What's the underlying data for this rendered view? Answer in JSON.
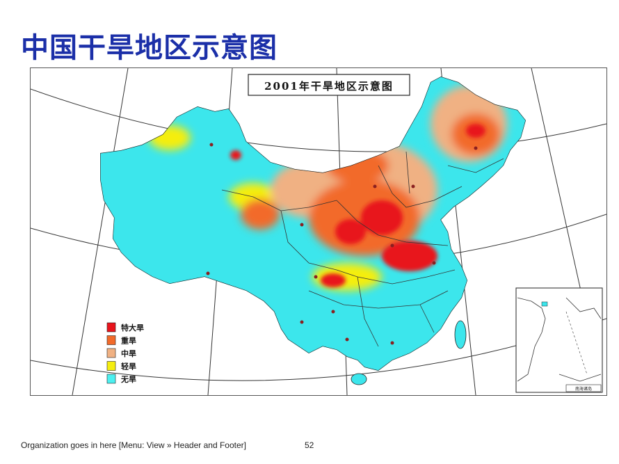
{
  "slide": {
    "title": "中国干旱地区示意图",
    "footer": "Organization goes in here [Menu: View » Header and Footer]",
    "page_number": "52"
  },
  "map": {
    "title": "2001年干旱地区示意图",
    "inset_label": "南海诸岛",
    "legend": [
      {
        "label": "特大旱",
        "color": "#e8141c"
      },
      {
        "label": "重旱",
        "color": "#f26a2a"
      },
      {
        "label": "中旱",
        "color": "#f0b183"
      },
      {
        "label": "轻旱",
        "color": "#f5ee10"
      },
      {
        "label": "无旱",
        "color": "#4cf0f0"
      }
    ],
    "colors": {
      "land": "#3ce6ec",
      "severe": "#e8141c",
      "heavy": "#f26a2a",
      "moderate": "#f0b183",
      "light": "#f5ee10",
      "border": "#333333",
      "graticule": "#333333"
    }
  }
}
